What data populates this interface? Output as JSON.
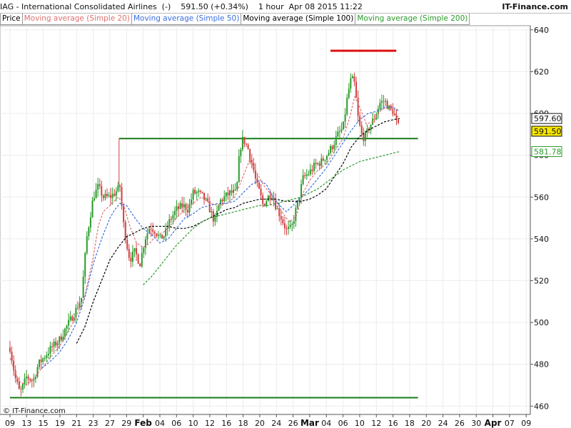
{
  "header": {
    "title": "IAG - International Consolidated Airlines  (-)    591.50 (+0.34%)    1 hour  Apr 08 2015 11:22",
    "brand": "IT-Finance.com",
    "copyright": "© IT-Finance.com"
  },
  "legend": [
    {
      "label": "Price",
      "color": "#000000"
    },
    {
      "label": "Moving average (Simple 20)",
      "color": "#e07070"
    },
    {
      "label": "Moving average (Simple 50)",
      "color": "#3a6fe0"
    },
    {
      "label": "Moving average (Simple 100)",
      "color": "#000000"
    },
    {
      "label": "Moving average (Simple 200)",
      "color": "#2a9a2a"
    }
  ],
  "colors": {
    "up": "#2a9a2a",
    "down": "#d04040",
    "sma20": "#e07070",
    "sma50": "#3a6fe0",
    "sma100": "#000000",
    "sma200": "#2a9a2a",
    "resistance": "#e01010",
    "level": "#1a7a1a",
    "grid": "#ececec",
    "axis": "#555555"
  },
  "chart_data": {
    "type": "candlestick",
    "ylim": [
      456,
      642
    ],
    "yticks": [
      460,
      480,
      500,
      520,
      540,
      560,
      580,
      600,
      620,
      640
    ],
    "xticks": [
      "09",
      "13",
      "15",
      "19",
      "21",
      "23",
      "27",
      "29",
      "Feb",
      "04",
      "06",
      "10",
      "12",
      "16",
      "18",
      "20",
      "24",
      "26",
      "Mar",
      "04",
      "06",
      "10",
      "12",
      "16",
      "18",
      "20",
      "24",
      "26",
      "30",
      "Apr",
      "07",
      "09"
    ],
    "price_labels": [
      {
        "text": "597.60",
        "value": 597.6,
        "style": "white"
      },
      {
        "text": "591.50",
        "value": 591.5,
        "style": "yellow"
      },
      {
        "text": "581.78",
        "value": 581.78,
        "style": "green"
      }
    ],
    "horizontal_lines": [
      {
        "name": "resistance-line",
        "value": 630,
        "color": "#e01010",
        "from_day": 19.25,
        "to_day": 23.2
      },
      {
        "name": "upper-support-line",
        "value": 588,
        "color": "#1a7a1a",
        "from_day": 6.55,
        "to_day": 24.5
      },
      {
        "name": "lower-support-line",
        "value": 464,
        "color": "#1a7a1a",
        "from_day": 0,
        "to_day": 24.5
      }
    ],
    "series": [
      {
        "name": "Price",
        "values": [
          [
            0,
            488
          ],
          [
            0.3,
            474
          ],
          [
            0.6,
            466
          ],
          [
            1.0,
            474
          ],
          [
            1.4,
            472
          ],
          [
            1.7,
            480
          ],
          [
            2.1,
            484
          ],
          [
            2.5,
            488
          ],
          [
            3.0,
            492
          ],
          [
            3.4,
            498
          ],
          [
            3.9,
            505
          ],
          [
            4.3,
            512
          ],
          [
            4.6,
            540
          ],
          [
            5.0,
            560
          ],
          [
            5.3,
            565
          ],
          [
            5.6,
            560
          ],
          [
            6.0,
            560
          ],
          [
            6.3,
            562
          ],
          [
            6.6,
            565
          ],
          [
            6.8,
            548
          ],
          [
            7.0,
            538
          ],
          [
            7.2,
            530
          ],
          [
            7.5,
            534
          ],
          [
            7.8,
            528
          ],
          [
            8.1,
            540
          ],
          [
            8.4,
            546
          ],
          [
            8.7,
            544
          ],
          [
            9.0,
            540
          ],
          [
            9.3,
            542
          ],
          [
            9.6,
            549
          ],
          [
            10.0,
            554
          ],
          [
            10.4,
            556
          ],
          [
            10.7,
            554
          ],
          [
            11.0,
            562
          ],
          [
            11.3,
            562
          ],
          [
            11.6,
            560
          ],
          [
            11.9,
            556
          ],
          [
            12.3,
            548
          ],
          [
            12.6,
            558
          ],
          [
            12.9,
            560
          ],
          [
            13.2,
            562
          ],
          [
            13.6,
            562
          ],
          [
            13.8,
            583
          ],
          [
            14.0,
            588
          ],
          [
            14.3,
            583
          ],
          [
            14.6,
            574
          ],
          [
            14.8,
            566
          ],
          [
            15.0,
            562
          ],
          [
            15.2,
            556
          ],
          [
            15.5,
            560
          ],
          [
            15.7,
            562
          ],
          [
            16.0,
            555
          ],
          [
            16.3,
            550
          ],
          [
            16.6,
            544
          ],
          [
            16.9,
            545
          ],
          [
            17.3,
            558
          ],
          [
            17.6,
            569
          ],
          [
            18.0,
            572
          ],
          [
            18.3,
            575
          ],
          [
            18.7,
            577
          ],
          [
            19.1,
            581
          ],
          [
            19.4,
            585
          ],
          [
            19.7,
            590
          ],
          [
            20.0,
            593
          ],
          [
            20.3,
            610
          ],
          [
            20.5,
            617
          ],
          [
            20.7,
            614
          ],
          [
            20.9,
            598
          ],
          [
            21.1,
            590
          ],
          [
            21.3,
            588
          ],
          [
            21.6,
            594
          ],
          [
            21.9,
            598
          ],
          [
            22.2,
            605
          ],
          [
            22.5,
            606
          ],
          [
            22.8,
            602
          ],
          [
            23.0,
            601
          ],
          [
            23.2,
            596
          ],
          [
            23.4,
            592
          ]
        ]
      },
      {
        "name": "Moving average (Simple 20)",
        "values": [
          [
            0,
            483
          ],
          [
            0.5,
            472
          ],
          [
            1.0,
            470
          ],
          [
            1.5,
            474
          ],
          [
            2.0,
            479
          ],
          [
            2.5,
            484
          ],
          [
            3.0,
            489
          ],
          [
            3.5,
            496
          ],
          [
            4.0,
            503
          ],
          [
            4.5,
            513
          ],
          [
            5.0,
            531
          ],
          [
            5.3,
            546
          ],
          [
            5.6,
            553
          ],
          [
            6.0,
            556
          ],
          [
            6.5,
            560
          ],
          [
            6.8,
            557
          ],
          [
            7.2,
            546
          ],
          [
            7.6,
            538
          ],
          [
            8.0,
            536
          ],
          [
            8.4,
            538
          ],
          [
            8.8,
            542
          ],
          [
            9.2,
            543
          ],
          [
            9.6,
            546
          ],
          [
            10.0,
            550
          ],
          [
            10.5,
            554
          ],
          [
            11.0,
            557
          ],
          [
            11.5,
            560
          ],
          [
            12.0,
            557
          ],
          [
            12.5,
            556
          ],
          [
            13.0,
            557
          ],
          [
            13.5,
            560
          ],
          [
            14.0,
            570
          ],
          [
            14.4,
            578
          ],
          [
            14.8,
            572
          ],
          [
            15.2,
            566
          ],
          [
            15.6,
            562
          ],
          [
            16.0,
            558
          ],
          [
            16.4,
            552
          ],
          [
            16.8,
            548
          ],
          [
            17.2,
            551
          ],
          [
            17.6,
            562
          ],
          [
            18.0,
            568
          ],
          [
            18.5,
            573
          ],
          [
            19.0,
            576
          ],
          [
            19.5,
            582
          ],
          [
            20.0,
            588
          ],
          [
            20.4,
            598
          ],
          [
            20.7,
            608
          ],
          [
            21.0,
            603
          ],
          [
            21.4,
            595
          ],
          [
            21.8,
            596
          ],
          [
            22.2,
            601
          ],
          [
            22.6,
            603
          ],
          [
            23.0,
            601
          ],
          [
            23.4,
            597.6
          ]
        ]
      },
      {
        "name": "Moving average (Simple 50)",
        "values": [
          [
            1.9,
            478
          ],
          [
            2.5,
            482
          ],
          [
            3.0,
            486
          ],
          [
            3.5,
            492
          ],
          [
            4.0,
            500
          ],
          [
            4.5,
            512
          ],
          [
            5.0,
            528
          ],
          [
            5.5,
            540
          ],
          [
            6.0,
            550
          ],
          [
            6.3,
            554
          ],
          [
            6.6,
            557
          ],
          [
            7.0,
            556
          ],
          [
            7.5,
            550
          ],
          [
            8.0,
            545
          ],
          [
            8.5,
            542
          ],
          [
            9.0,
            538
          ],
          [
            9.5,
            540
          ],
          [
            10.0,
            545
          ],
          [
            10.5,
            550
          ],
          [
            11.0,
            552
          ],
          [
            11.5,
            555
          ],
          [
            12.0,
            556
          ],
          [
            12.5,
            557
          ],
          [
            13.0,
            557
          ],
          [
            13.5,
            558
          ],
          [
            14.0,
            562
          ],
          [
            14.5,
            566
          ],
          [
            15.0,
            568
          ],
          [
            15.4,
            566
          ],
          [
            15.8,
            560
          ],
          [
            16.2,
            556
          ],
          [
            16.6,
            553
          ],
          [
            17.0,
            556
          ],
          [
            17.5,
            560
          ],
          [
            18.0,
            564
          ],
          [
            18.5,
            569
          ],
          [
            19.0,
            574
          ],
          [
            19.5,
            580
          ],
          [
            20.0,
            586
          ],
          [
            20.5,
            592
          ],
          [
            21.0,
            597
          ],
          [
            21.5,
            600
          ],
          [
            22.0,
            601
          ],
          [
            22.5,
            603
          ],
          [
            23.0,
            603
          ],
          [
            23.4,
            601
          ]
        ]
      },
      {
        "name": "Moving average (Simple 100)",
        "values": [
          [
            4.0,
            490
          ],
          [
            4.5,
            498
          ],
          [
            5.0,
            510
          ],
          [
            5.5,
            520
          ],
          [
            6.0,
            530
          ],
          [
            6.5,
            536
          ],
          [
            7.0,
            541
          ],
          [
            7.5,
            543
          ],
          [
            8.0,
            545
          ],
          [
            8.5,
            546
          ],
          [
            9.0,
            546
          ],
          [
            9.5,
            546
          ],
          [
            10.0,
            545
          ],
          [
            10.5,
            545
          ],
          [
            11.0,
            546
          ],
          [
            11.5,
            548
          ],
          [
            12.0,
            550
          ],
          [
            12.5,
            552
          ],
          [
            13.0,
            554
          ],
          [
            13.5,
            555
          ],
          [
            14.0,
            557
          ],
          [
            14.5,
            558
          ],
          [
            15.0,
            559
          ],
          [
            15.5,
            559
          ],
          [
            16.0,
            559
          ],
          [
            16.5,
            558
          ],
          [
            17.0,
            558
          ],
          [
            17.5,
            558
          ],
          [
            18.0,
            559
          ],
          [
            18.5,
            561
          ],
          [
            19.0,
            564
          ],
          [
            19.5,
            570
          ],
          [
            20.0,
            576
          ],
          [
            20.5,
            584
          ],
          [
            21.0,
            589
          ],
          [
            21.5,
            592
          ],
          [
            22.0,
            594
          ],
          [
            22.5,
            596
          ],
          [
            23.0,
            597
          ],
          [
            23.4,
            597.6
          ]
        ]
      },
      {
        "name": "Moving average (Simple 200)",
        "values": [
          [
            8.0,
            518
          ],
          [
            8.5,
            522
          ],
          [
            9.0,
            527
          ],
          [
            9.5,
            532
          ],
          [
            10.0,
            537
          ],
          [
            10.5,
            541
          ],
          [
            11.0,
            545
          ],
          [
            11.5,
            548
          ],
          [
            12.0,
            550
          ],
          [
            12.5,
            551
          ],
          [
            13.0,
            552
          ],
          [
            13.5,
            553
          ],
          [
            14.0,
            554
          ],
          [
            14.5,
            555
          ],
          [
            15.0,
            556
          ],
          [
            15.5,
            556
          ],
          [
            16.0,
            557
          ],
          [
            16.5,
            558
          ],
          [
            17.0,
            559
          ],
          [
            17.5,
            560
          ],
          [
            18.0,
            562
          ],
          [
            18.5,
            564
          ],
          [
            19.0,
            567
          ],
          [
            19.5,
            570
          ],
          [
            20.0,
            573
          ],
          [
            20.5,
            575
          ],
          [
            21.0,
            577
          ],
          [
            21.5,
            578
          ],
          [
            22.0,
            579
          ],
          [
            22.5,
            580
          ],
          [
            23.0,
            581
          ],
          [
            23.4,
            581.78
          ]
        ]
      }
    ]
  }
}
